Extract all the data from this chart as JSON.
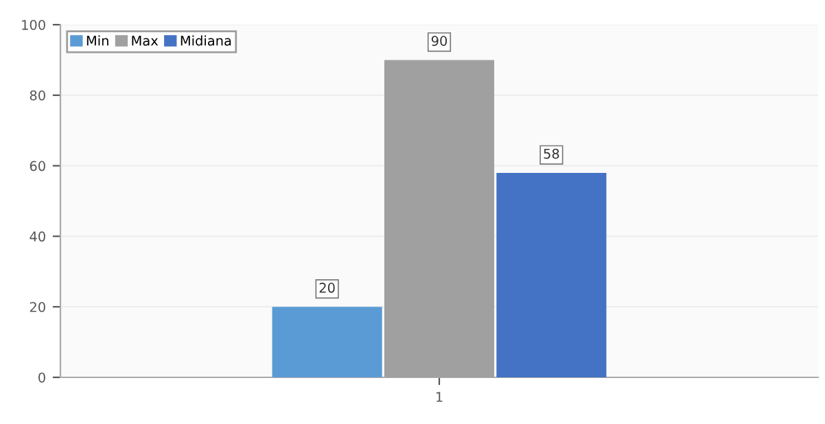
{
  "chart_data": {
    "type": "bar",
    "categories": [
      "1"
    ],
    "series": [
      {
        "name": "Min",
        "color": "#5b9bd5",
        "values": [
          20
        ]
      },
      {
        "name": "Max",
        "color": "#a0a0a0",
        "values": [
          90
        ]
      },
      {
        "name": "Midiana",
        "color": "#4472c4",
        "values": [
          58
        ]
      }
    ],
    "ylim": [
      0,
      100
    ],
    "yticks": [
      0,
      20,
      40,
      60,
      80,
      100
    ],
    "grid": "y",
    "legend": "top left",
    "data_labels": true
  }
}
